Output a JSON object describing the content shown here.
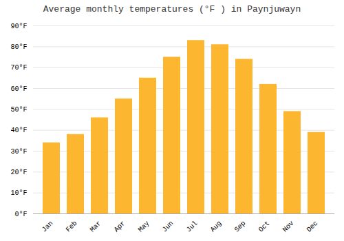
{
  "chart_data": {
    "type": "bar",
    "title": "Average monthly temperatures (°F ) in Paynjuwayn",
    "categories": [
      "Jan",
      "Feb",
      "Mar",
      "Apr",
      "May",
      "Jun",
      "Jul",
      "Aug",
      "Sep",
      "Oct",
      "Nov",
      "Dec"
    ],
    "values": [
      34,
      38,
      46,
      55,
      65,
      75,
      83,
      81,
      74,
      62,
      49,
      39
    ],
    "color": "#FDB62F",
    "ylim": [
      0,
      90
    ],
    "yticks": [
      {
        "value": 0,
        "label": "0°F"
      },
      {
        "value": 10,
        "label": "10°F"
      },
      {
        "value": 20,
        "label": "20°F"
      },
      {
        "value": 30,
        "label": "30°F"
      },
      {
        "value": 40,
        "label": "40°F"
      },
      {
        "value": 50,
        "label": "50°F"
      },
      {
        "value": 60,
        "label": "60°F"
      },
      {
        "value": 70,
        "label": "70°F"
      },
      {
        "value": 80,
        "label": "80°F"
      },
      {
        "value": 90,
        "label": "90°F"
      }
    ],
    "grid": true
  }
}
